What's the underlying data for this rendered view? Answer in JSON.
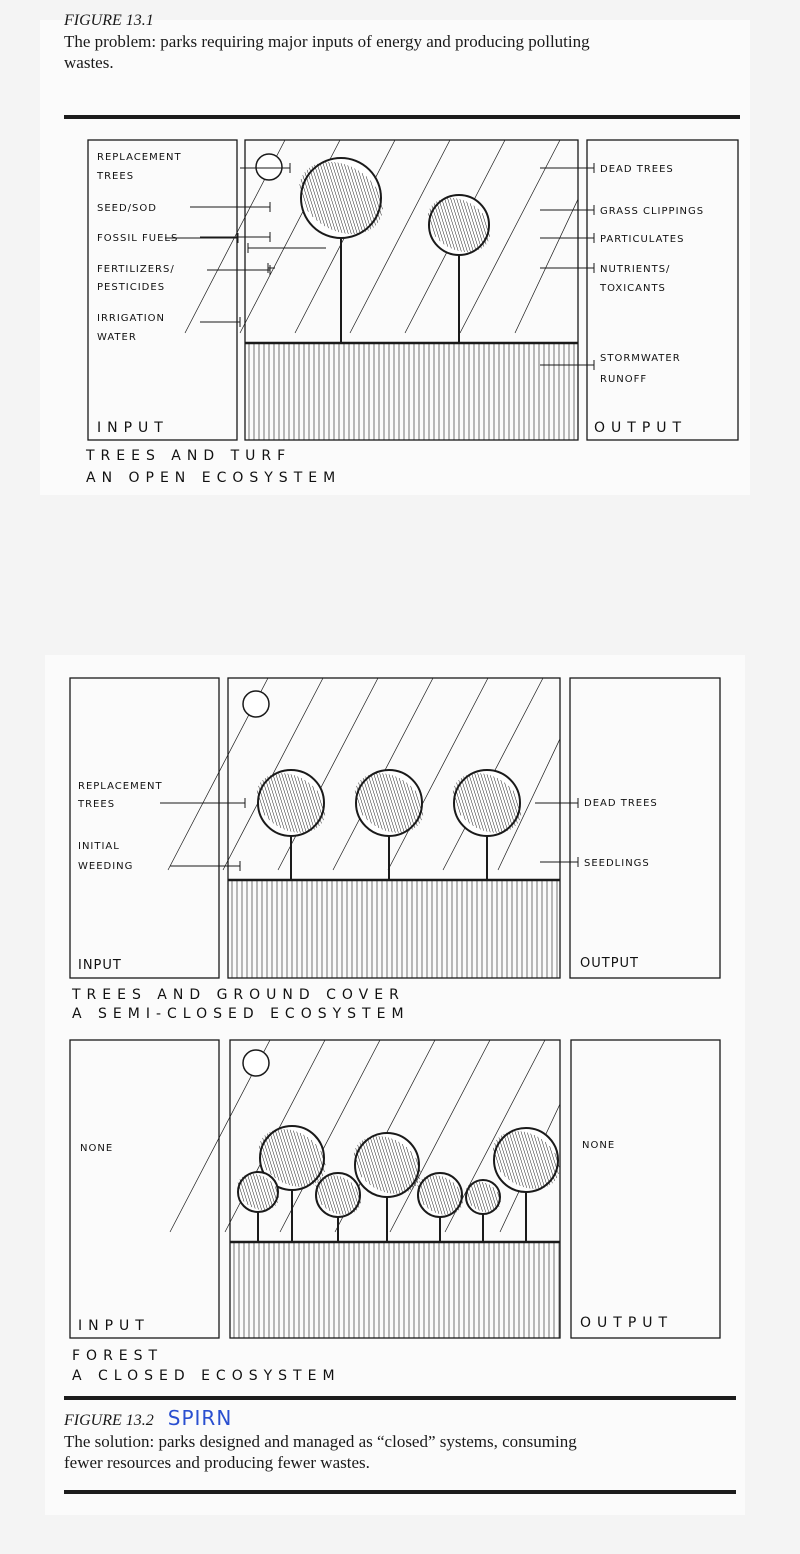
{
  "figure1": {
    "label": "FIGURE 13.1",
    "caption_line1": "The problem: parks requiring major inputs of energy and producing polluting",
    "caption_line2": "wastes.",
    "diagram": {
      "inputs": [
        "REPLACEMENT",
        "TREES",
        "SEED/SOD",
        "FOSSIL FUELS",
        "FERTILIZERS/",
        "PESTICIDES",
        "IRRIGATION",
        "WATER"
      ],
      "outputs": [
        "DEAD TREES",
        "GRASS CLIPPINGS",
        "PARTICULATES",
        "NUTRIENTS/",
        "TOXICANTS",
        "STORMWATER",
        "RUNOFF"
      ],
      "input_label": "INPUT",
      "output_label": "OUTPUT",
      "title_line1": "TREES AND TURF",
      "title_line2": "AN OPEN ECOSYSTEM"
    }
  },
  "figure2": {
    "label": "FIGURE 13.2",
    "handwritten_note": "SPIRN",
    "caption_line1": "The solution: parks designed and managed as “closed” systems, consuming",
    "caption_line2": "fewer resources and producing fewer wastes.",
    "diagram_a": {
      "inputs": [
        "REPLACEMENT",
        "TREES",
        "INITIAL",
        "WEEDING"
      ],
      "outputs": [
        "DEAD TREES",
        "SEEDLINGS"
      ],
      "input_label": "INPUT",
      "output_label": "OUTPUT",
      "title_line1": "TREES AND GROUND COVER",
      "title_line2": "A SEMI-CLOSED ECOSYSTEM"
    },
    "diagram_b": {
      "input_none": "NONE",
      "output_none": "NONE",
      "input_label": "INPUT",
      "output_label": "OUTPUT",
      "title_line1": "FOREST",
      "title_line2": "A CLOSED ECOSYSTEM"
    }
  },
  "colors": {
    "ink": "#1a1a1a",
    "note": "#2a4fd0"
  }
}
